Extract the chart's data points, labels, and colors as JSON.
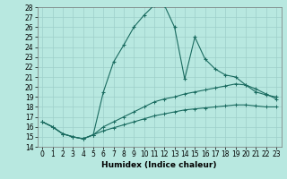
{
  "xlabel": "Humidex (Indice chaleur)",
  "xlim": [
    -0.5,
    23.5
  ],
  "ylim": [
    14,
    28
  ],
  "xticks": [
    0,
    1,
    2,
    3,
    4,
    5,
    6,
    7,
    8,
    9,
    10,
    11,
    12,
    13,
    14,
    15,
    16,
    17,
    18,
    19,
    20,
    21,
    22,
    23
  ],
  "yticks": [
    14,
    15,
    16,
    17,
    18,
    19,
    20,
    21,
    22,
    23,
    24,
    25,
    26,
    27,
    28
  ],
  "bg_color": "#b8e8e0",
  "grid_color": "#9ecfca",
  "line_color": "#1a6b60",
  "line1_x": [
    0,
    1,
    2,
    3,
    4,
    5,
    6,
    7,
    8,
    9,
    10,
    11,
    12,
    13,
    14,
    15,
    16,
    17,
    18,
    19,
    20,
    21,
    22,
    23
  ],
  "line1_y": [
    16.5,
    16.0,
    15.3,
    15.0,
    14.8,
    15.2,
    19.5,
    22.5,
    24.2,
    26.0,
    27.2,
    28.2,
    28.2,
    26.0,
    20.8,
    25.0,
    22.8,
    21.8,
    21.2,
    21.0,
    20.2,
    19.5,
    19.2,
    19.0
  ],
  "line2_x": [
    0,
    1,
    2,
    3,
    4,
    5,
    6,
    7,
    8,
    9,
    10,
    11,
    12,
    13,
    14,
    15,
    16,
    17,
    18,
    19,
    20,
    21,
    22,
    23
  ],
  "line2_y": [
    16.5,
    16.0,
    15.3,
    15.0,
    14.8,
    15.2,
    16.0,
    16.5,
    17.0,
    17.5,
    18.0,
    18.5,
    18.8,
    19.0,
    19.3,
    19.5,
    19.7,
    19.9,
    20.1,
    20.3,
    20.2,
    19.8,
    19.3,
    18.8
  ],
  "line3_x": [
    0,
    1,
    2,
    3,
    4,
    5,
    6,
    7,
    8,
    9,
    10,
    11,
    12,
    13,
    14,
    15,
    16,
    17,
    18,
    19,
    20,
    21,
    22,
    23
  ],
  "line3_y": [
    16.5,
    16.0,
    15.3,
    15.0,
    14.8,
    15.2,
    15.6,
    15.9,
    16.2,
    16.5,
    16.8,
    17.1,
    17.3,
    17.5,
    17.7,
    17.8,
    17.9,
    18.0,
    18.1,
    18.2,
    18.2,
    18.1,
    18.0,
    18.0
  ],
  "xlabel_fontsize": 6.5,
  "tick_fontsize": 5.5
}
